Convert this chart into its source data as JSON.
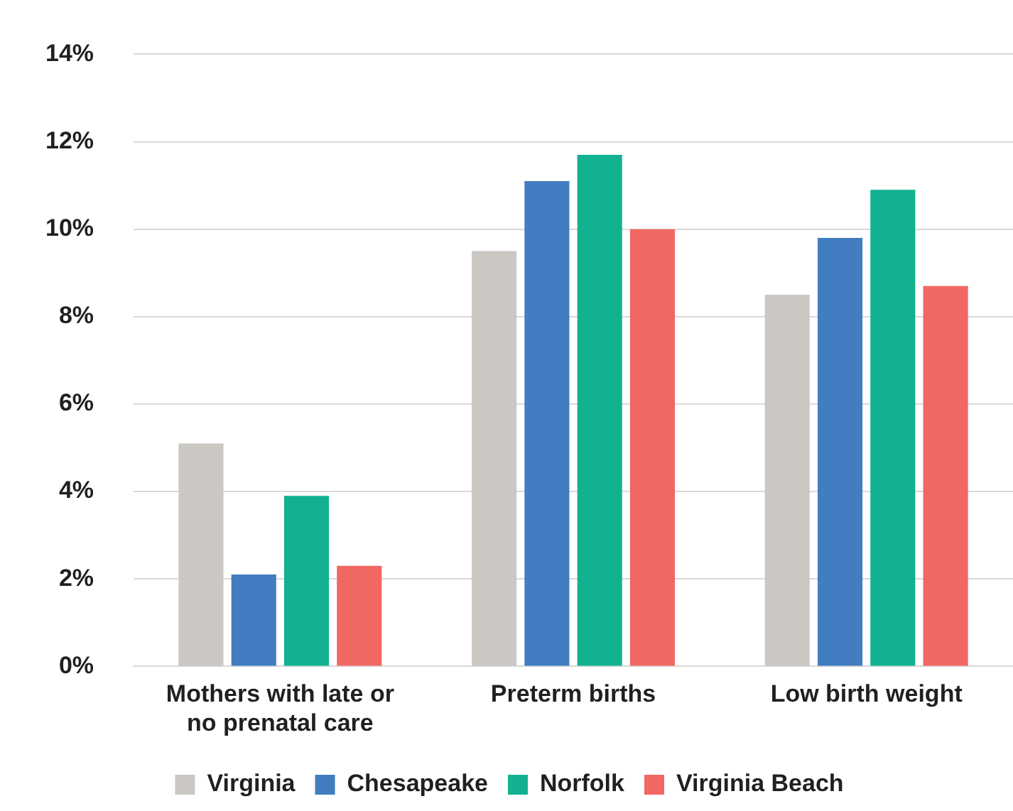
{
  "chart_data": {
    "type": "bar",
    "categories": [
      "Mothers with late or no prenatal care",
      "Preterm births",
      "Low birth weight"
    ],
    "series": [
      {
        "name": "Virginia",
        "color": "#cbc7c3",
        "values": [
          5.1,
          9.5,
          8.5
        ]
      },
      {
        "name": "Chesapeake",
        "color": "#417dc0",
        "values": [
          2.1,
          11.1,
          9.8
        ]
      },
      {
        "name": "Norfolk",
        "color": "#12b290",
        "values": [
          3.9,
          11.7,
          10.9
        ]
      },
      {
        "name": "Virginia Beach",
        "color": "#f16762",
        "values": [
          2.3,
          10.0,
          8.7
        ]
      }
    ],
    "ylim": [
      0,
      14
    ],
    "yticks": [
      {
        "value": 0,
        "label": "0%"
      },
      {
        "value": 2,
        "label": "2%"
      },
      {
        "value": 4,
        "label": "4%"
      },
      {
        "value": 6,
        "label": "6%"
      },
      {
        "value": 8,
        "label": "8%"
      },
      {
        "value": 10,
        "label": "10%"
      },
      {
        "value": 12,
        "label": "12%"
      },
      {
        "value": 14,
        "label": "14%"
      }
    ],
    "grid": "y",
    "legend": "bottom"
  }
}
